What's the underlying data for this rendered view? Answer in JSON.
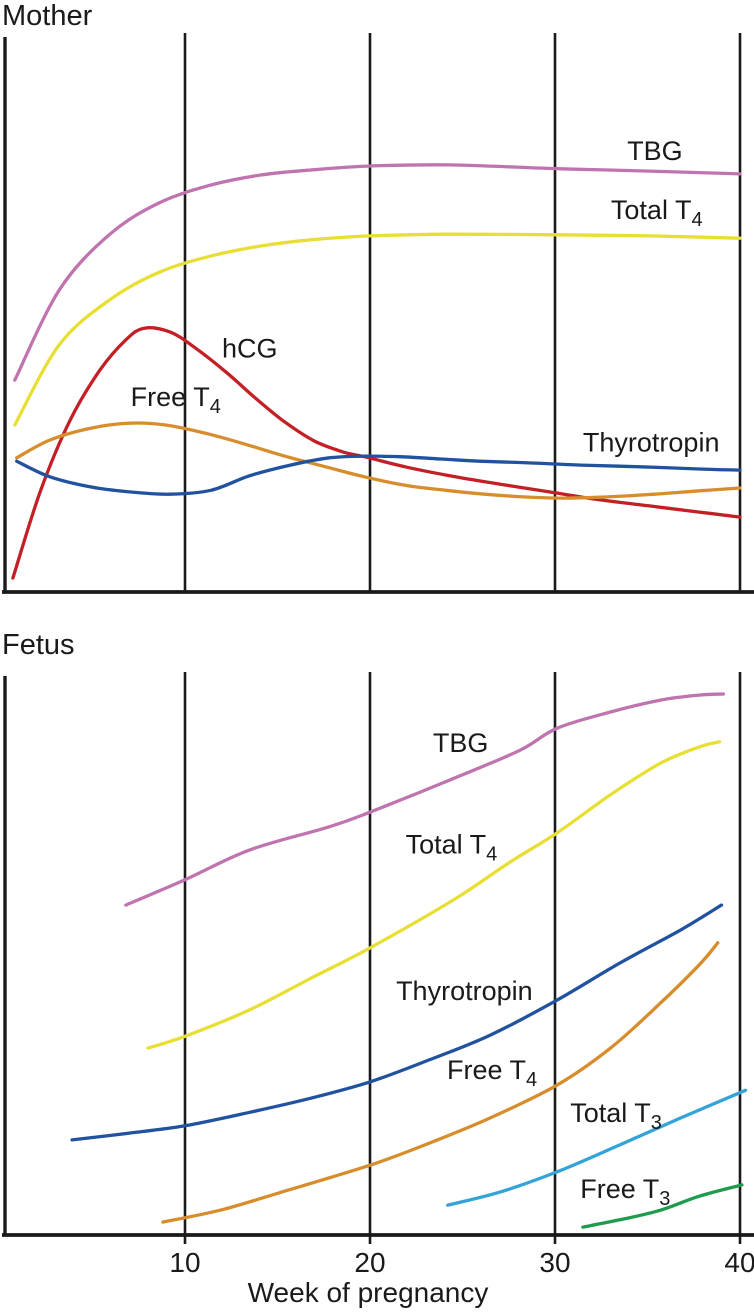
{
  "figure": {
    "title_mother": "Mother",
    "title_fetus": "Fetus",
    "x_axis_label": "Week of pregnancy",
    "x_ticks": [
      10,
      20,
      30,
      40
    ],
    "x_range": [
      0,
      40
    ],
    "colors": {
      "axis": "#1a1a1a",
      "text": "#1a1a1a",
      "background": "#ffffff",
      "tbg": "#bf74b0",
      "total_t4": "#e7df33",
      "hcg": "#c32026",
      "free_t4": "#d88d2d",
      "thyrotropin": "#2052a0",
      "total_t3": "#33a3d8",
      "free_t3": "#1f9b4d"
    }
  },
  "chart_data": [
    {
      "id": "mother",
      "type": "line",
      "title": "Mother",
      "xlabel": "Week of pregnancy",
      "ylabel": "",
      "y_note": "relative hormone level (y-axis unlabeled in source figure), 0-100 of panel height",
      "x_range": [
        0,
        40
      ],
      "y_range": [
        0,
        100
      ],
      "grid": "vertical lines at weeks 10, 20, 30, 40; no horizontal gridlines",
      "legend_position": "labels drawn next to curves",
      "series": [
        {
          "name": "TBG",
          "label": "TBG",
          "color": "#bf74b0",
          "label_at": {
            "week": 35.4,
            "level": 78.9
          },
          "points": [
            [
              0.8,
              37.9
            ],
            [
              3.2,
              54.0
            ],
            [
              5.9,
              63.9
            ],
            [
              8.6,
              69.6
            ],
            [
              11.4,
              72.8
            ],
            [
              14.1,
              74.6
            ],
            [
              16.8,
              75.5
            ],
            [
              20,
              76.2
            ],
            [
              24.3,
              76.4
            ],
            [
              30.3,
              75.7
            ],
            [
              35.1,
              75.3
            ],
            [
              40,
              74.8
            ]
          ]
        },
        {
          "name": "Total T4",
          "label": "Total T_4",
          "color": "#e7df33",
          "label_at": {
            "week": 35.5,
            "level": 68.3
          },
          "points": [
            [
              0.8,
              29.9
            ],
            [
              3.2,
              44.2
            ],
            [
              5.9,
              52.2
            ],
            [
              8.6,
              57.2
            ],
            [
              11.4,
              60.1
            ],
            [
              14.1,
              61.9
            ],
            [
              16.8,
              63.0
            ],
            [
              20,
              63.7
            ],
            [
              24.3,
              64.0
            ],
            [
              30.3,
              63.9
            ],
            [
              35.1,
              63.7
            ],
            [
              40,
              63.3
            ]
          ]
        },
        {
          "name": "hCG",
          "label": "hCG",
          "color": "#c32026",
          "label_at": {
            "week": 13.5,
            "level": 43.6
          },
          "points": [
            [
              0.7,
              2.5
            ],
            [
              2.2,
              18.2
            ],
            [
              3.8,
              30.8
            ],
            [
              5.4,
              39.7
            ],
            [
              6.8,
              45.1
            ],
            [
              7.8,
              47.2
            ],
            [
              9.2,
              46.5
            ],
            [
              10.5,
              43.8
            ],
            [
              12.2,
              39.4
            ],
            [
              13.8,
              34.7
            ],
            [
              15.4,
              30.4
            ],
            [
              17,
              27.0
            ],
            [
              18.6,
              25.0
            ],
            [
              19.7,
              24.2
            ],
            [
              21.9,
              22.4
            ],
            [
              24.3,
              20.8
            ],
            [
              27,
              19.3
            ],
            [
              29.7,
              17.9
            ],
            [
              32.4,
              16.5
            ],
            [
              35.1,
              15.4
            ],
            [
              37.8,
              14.3
            ],
            [
              40,
              13.4
            ]
          ]
        },
        {
          "name": "Free T4",
          "label": "Free T_4",
          "color": "#d88d2d",
          "label_at": {
            "week": 9.5,
            "level": 34.9
          },
          "points": [
            [
              0.9,
              24.0
            ],
            [
              2.7,
              27.2
            ],
            [
              4.9,
              29.3
            ],
            [
              7,
              30.2
            ],
            [
              8.9,
              29.9
            ],
            [
              11.1,
              28.4
            ],
            [
              13.2,
              26.5
            ],
            [
              15.4,
              24.3
            ],
            [
              17.6,
              22.4
            ],
            [
              19.7,
              20.6
            ],
            [
              21.9,
              19.1
            ],
            [
              24.1,
              18.2
            ],
            [
              26.2,
              17.5
            ],
            [
              28.4,
              17.0
            ],
            [
              30.5,
              16.8
            ],
            [
              32.7,
              17.0
            ],
            [
              35.4,
              17.5
            ],
            [
              37.8,
              18.1
            ],
            [
              40,
              18.6
            ]
          ]
        },
        {
          "name": "Thyrotropin",
          "label": "Thyrotropin",
          "color": "#2052a0",
          "label_at": {
            "week": 35.2,
            "level": 26.7
          },
          "points": [
            [
              0.9,
              23.4
            ],
            [
              2.7,
              20.6
            ],
            [
              4.9,
              18.8
            ],
            [
              7,
              17.9
            ],
            [
              9.2,
              17.5
            ],
            [
              11.4,
              18.2
            ],
            [
              13.5,
              20.8
            ],
            [
              15.7,
              22.7
            ],
            [
              17.8,
              24.0
            ],
            [
              19.7,
              24.3
            ],
            [
              21.6,
              24.2
            ],
            [
              23.8,
              23.8
            ],
            [
              25.9,
              23.4
            ],
            [
              28.6,
              23.1
            ],
            [
              31.4,
              22.7
            ],
            [
              34.6,
              22.4
            ],
            [
              37.8,
              22.0
            ],
            [
              40,
              21.8
            ]
          ]
        }
      ]
    },
    {
      "id": "fetus",
      "type": "line",
      "title": "Fetus",
      "xlabel": "Week of pregnancy",
      "ylabel": "",
      "y_note": "relative hormone level (y-axis unlabeled in source figure), 0-100 of panel height",
      "x_range": [
        0,
        40
      ],
      "y_range": [
        0,
        100
      ],
      "grid": "vertical lines at weeks 10, 20, 30, 40; no horizontal gridlines",
      "legend_position": "labels drawn next to curves",
      "series": [
        {
          "name": "TBG",
          "label": "TBG",
          "color": "#bf74b0",
          "label_at": {
            "week": 24.9,
            "level": 87.4
          },
          "points": [
            [
              6.8,
              58.6
            ],
            [
              10,
              63.1
            ],
            [
              13.5,
              68.4
            ],
            [
              17.8,
              72.5
            ],
            [
              20,
              75.1
            ],
            [
              24.3,
              80.8
            ],
            [
              28.1,
              86.1
            ],
            [
              30.1,
              90.0
            ],
            [
              33,
              92.9
            ],
            [
              35.7,
              95.0
            ],
            [
              37.8,
              95.9
            ],
            [
              39.1,
              96.1
            ]
          ]
        },
        {
          "name": "Total T4",
          "label": "Total T_4",
          "color": "#e7df33",
          "label_at": {
            "week": 24.4,
            "level": 69.4
          },
          "points": [
            [
              8,
              33.2
            ],
            [
              10,
              35.3
            ],
            [
              13.5,
              40.0
            ],
            [
              16.8,
              45.6
            ],
            [
              20,
              51.0
            ],
            [
              24.5,
              59.5
            ],
            [
              27.6,
              66.3
            ],
            [
              30.1,
              71.4
            ],
            [
              33,
              78.2
            ],
            [
              35.7,
              83.8
            ],
            [
              37.8,
              86.7
            ],
            [
              38.9,
              87.6
            ]
          ]
        },
        {
          "name": "Thyrotropin",
          "label": "Thyrotropin",
          "color": "#2052a0",
          "label_at": {
            "week": 25.1,
            "level": 43.3
          },
          "points": [
            [
              3.9,
              16.9
            ],
            [
              7,
              18.1
            ],
            [
              10,
              19.4
            ],
            [
              13.5,
              21.8
            ],
            [
              16.8,
              24.3
            ],
            [
              20,
              27.2
            ],
            [
              23.2,
              31.1
            ],
            [
              26.5,
              35.5
            ],
            [
              30.1,
              41.7
            ],
            [
              33.5,
              48.3
            ],
            [
              36.8,
              54.2
            ],
            [
              39,
              58.6
            ]
          ]
        },
        {
          "name": "Free T4",
          "label": "Free T_4",
          "color": "#d88d2d",
          "label_at": {
            "week": 26.6,
            "level": 29.3
          },
          "points": [
            [
              8.8,
              2.3
            ],
            [
              11.9,
              4.4
            ],
            [
              15.1,
              7.5
            ],
            [
              20,
              12.4
            ],
            [
              23.2,
              16.3
            ],
            [
              26.5,
              20.8
            ],
            [
              30.1,
              26.6
            ],
            [
              33,
              33.2
            ],
            [
              35.7,
              41.2
            ],
            [
              37.8,
              48.0
            ],
            [
              38.8,
              51.9
            ]
          ]
        },
        {
          "name": "Total T3",
          "label": "Total T_3",
          "color": "#33a3d8",
          "label_at": {
            "week": 33.3,
            "level": 21.7
          },
          "points": [
            [
              24.2,
              5.3
            ],
            [
              27,
              7.6
            ],
            [
              30.1,
              11.2
            ],
            [
              33.5,
              16.0
            ],
            [
              36.8,
              20.8
            ],
            [
              40.3,
              25.7
            ]
          ]
        },
        {
          "name": "Free T3",
          "label": "Free T_3",
          "color": "#1f9b4d",
          "label_at": {
            "week": 33.8,
            "level": 8.2
          },
          "points": [
            [
              31.5,
              1.4
            ],
            [
              33.5,
              2.7
            ],
            [
              35.7,
              4.4
            ],
            [
              37.8,
              6.9
            ],
            [
              40.1,
              8.9
            ]
          ]
        }
      ]
    }
  ]
}
